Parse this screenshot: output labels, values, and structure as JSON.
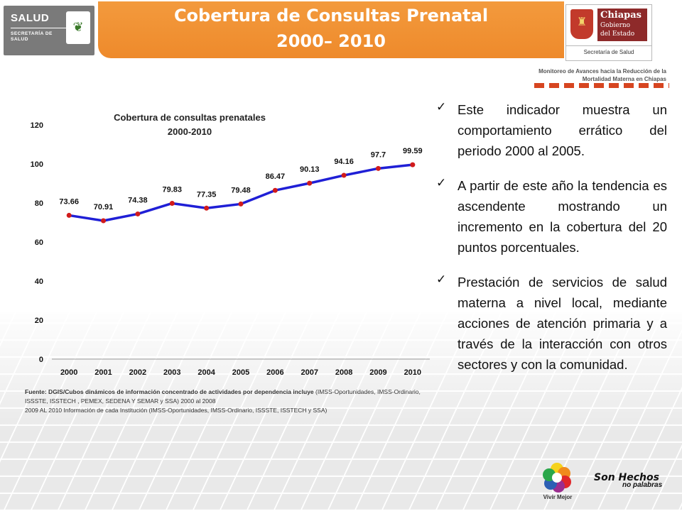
{
  "header": {
    "title_line1": "Cobertura de Consultas Prenatal",
    "title_line2": "2000– 2010",
    "left_logo": {
      "word": "SALUD",
      "sub": "SECRETARÍA DE SALUD"
    },
    "right_logo": {
      "name1": "Chiapas",
      "name2": "Gobierno",
      "name3": "del Estado",
      "secretaria": "Secretaría de Salud"
    },
    "monitor_text": "Monitoreo de Avances hacia la Reducción de la Mortalidad Materna en Chiapas"
  },
  "chart_data": {
    "type": "line",
    "title": "Cobertura de consultas prenatales 2000-2010",
    "title_lines": [
      "Cobertura de consultas prenatales",
      "2000-2010"
    ],
    "categories": [
      "2000",
      "2001",
      "2002",
      "2003",
      "2004",
      "2005",
      "2006",
      "2007",
      "2008",
      "2009",
      "2010"
    ],
    "series": [
      {
        "values": [
          73.66,
          70.91,
          74.38,
          79.83,
          77.35,
          79.48,
          86.47,
          90.13,
          94.16,
          97.7,
          99.59
        ],
        "labels": [
          "73.66",
          "70.91",
          "74.38",
          "79.83",
          "77.35",
          "79.48",
          "86.47",
          "90.13",
          "94.16",
          "97.7",
          "99.59"
        ],
        "color": "#1f1fd6",
        "marker_color": "#d11b1b"
      }
    ],
    "ylim": [
      0,
      120
    ],
    "yticks": [
      0,
      20,
      40,
      60,
      80,
      100,
      120
    ],
    "xlabel": "",
    "ylabel": "",
    "grid": false,
    "legend": "none"
  },
  "source_note": {
    "bold": "Fuente: DGIS/Cubos dinámicos de información concentrado de actividades por dependencia incluye",
    "rest": " (IMSS-Oportunidades,  IMSS-Ordinario, ISSSTE, ISSTECH , PEMEX, SEDENA Y SEMAR y SSA)   2000 al 2008",
    "line3": "2009 AL 2010 Información de cada Institución (IMSS-Oportunidades, IMSS-Ordinario, ISSSTE, ISSTECH y SSA)"
  },
  "bullets": [
    "Este indicador muestra un comportamiento errático del periodo 2000 al 2005.",
    "A partir de este año la tendencia es ascendente mostrando un incremento en la cobertura del 20 puntos porcentuales.",
    "Prestación de servicios de salud materna a nivel local, mediante acciones de atención primaria y a través de la interacción con otros sectores y con la comunidad."
  ],
  "footer": {
    "vivir_label": "Vivir Mejor",
    "hechos_line1": "Son Hechos",
    "hechos_line2": "no palabras"
  },
  "colors": {
    "banner": "#ee8a2b",
    "line": "#1f1fd6",
    "marker": "#d11b1b",
    "accent_dash": "#d64520"
  }
}
